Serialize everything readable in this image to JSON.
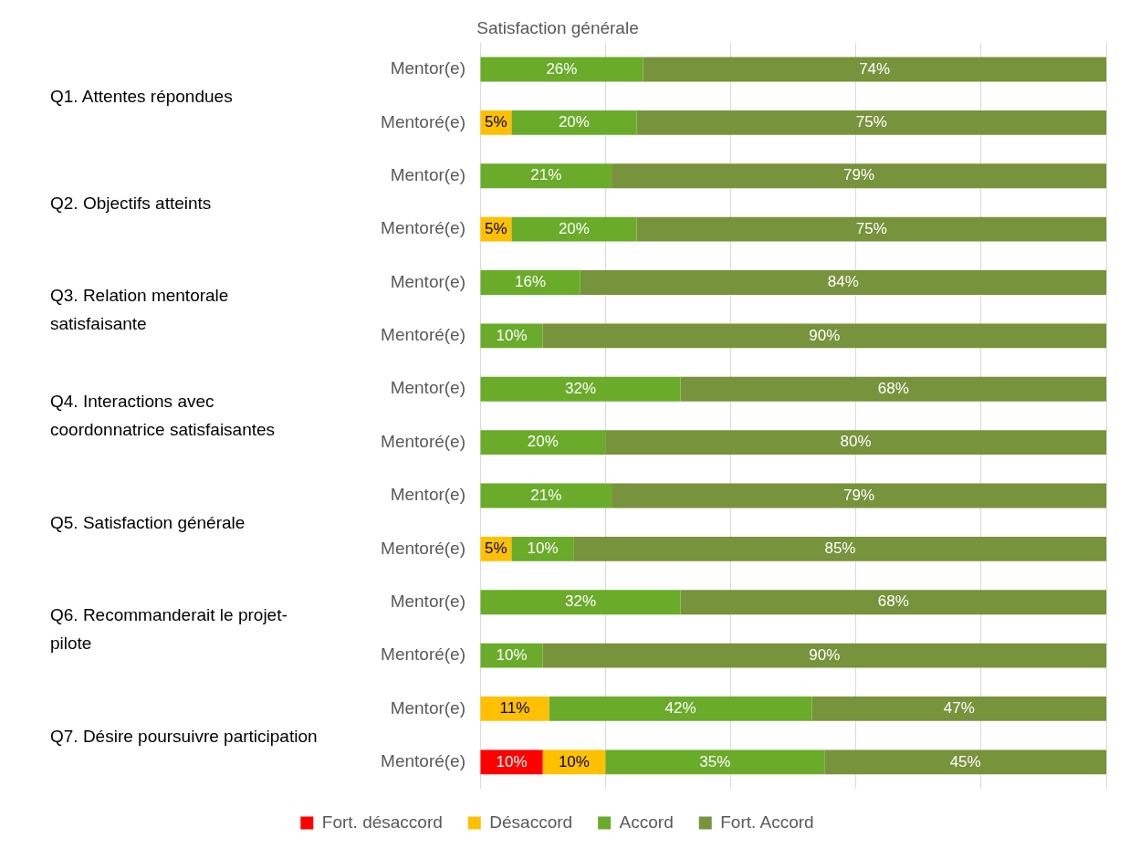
{
  "chart_data": {
    "type": "bar",
    "orientation": "horizontal",
    "stacked": true,
    "title": "Satisfaction générale",
    "categories": [
      "Mentor(e)",
      "Mentoré(e)",
      "Mentor(e)",
      "Mentoré(e)",
      "Mentor(e)",
      "Mentoré(e)",
      "Mentor(e)",
      "Mentoré(e)",
      "Mentor(e)",
      "Mentoré(e)",
      "Mentor(e)",
      "Mentoré(e)",
      "Mentor(e)",
      "Mentoré(e)"
    ],
    "series": [
      {
        "name": "Fort. désaccord",
        "color": "#ff0000",
        "values": [
          null,
          null,
          null,
          null,
          null,
          null,
          null,
          null,
          null,
          null,
          null,
          null,
          null,
          10
        ],
        "value_labels": [
          null,
          null,
          null,
          null,
          null,
          null,
          null,
          null,
          null,
          null,
          null,
          null,
          null,
          "10%"
        ]
      },
      {
        "name": "Désaccord",
        "color": "#ffc000",
        "values": [
          null,
          5,
          null,
          5,
          null,
          null,
          null,
          null,
          null,
          5,
          null,
          null,
          11,
          10
        ],
        "value_labels": [
          null,
          "5%",
          null,
          "5%",
          null,
          null,
          null,
          null,
          null,
          "5%",
          null,
          null,
          "11%",
          "10%"
        ]
      },
      {
        "name": "Accord",
        "color": "#6aab2a",
        "values": [
          26,
          20,
          21,
          20,
          16,
          10,
          32,
          20,
          21,
          10,
          32,
          10,
          42,
          35
        ],
        "value_labels": [
          "26%",
          "20%",
          "21%",
          "20%",
          "16%",
          "10%",
          "32%",
          "20%",
          "21%",
          "10%",
          "32%",
          "10%",
          "42%",
          "35%"
        ]
      },
      {
        "name": "Fort. Accord",
        "color": "#77933c",
        "values": [
          74,
          75,
          79,
          75,
          84,
          90,
          68,
          80,
          79,
          85,
          68,
          90,
          47,
          45
        ],
        "value_labels": [
          "74%",
          "75%",
          "79%",
          "75%",
          "84%",
          "90%",
          "68%",
          "80%",
          "79%",
          "85%",
          "68%",
          "90%",
          "47%",
          "45%"
        ]
      }
    ],
    "xlim": [
      0,
      100
    ],
    "xticks": [
      {
        "value": 0,
        "label": null
      },
      {
        "value": 20,
        "label": null
      },
      {
        "value": 40,
        "label": null
      },
      {
        "value": 60,
        "label": null
      },
      {
        "value": 80,
        "label": null
      },
      {
        "value": 100,
        "label": null
      }
    ],
    "tick_labels": "y",
    "grid": "x",
    "legend": "bottom",
    "annotations": [
      "Q1. Attentes répondues",
      "Q2. Objectifs atteints",
      "Q3. Relation mentorale satisfaisante",
      "Q4. Interactions avec coordonnatrice satisfaisantes",
      "Q5. Satisfaction générale",
      "Q6. Recommanderait le projet-pilote",
      "Q7. Désire poursuivre participation"
    ]
  }
}
